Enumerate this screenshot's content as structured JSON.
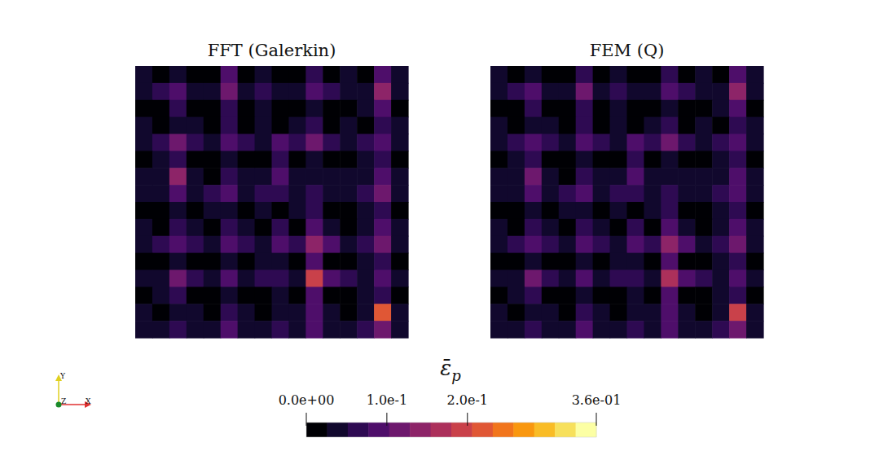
{
  "chart_data": {
    "type": "heatmap",
    "panels": [
      {
        "title": "FFT (Galerkin)",
        "cells": [
          [
            0.03,
            0,
            0.05,
            0,
            0,
            0.08,
            0,
            0.03,
            0,
            0,
            0.06,
            0,
            0.03,
            0,
            0.09,
            0.03
          ],
          [
            0.04,
            0.06,
            0.1,
            0.05,
            0.04,
            0.12,
            0.05,
            0.06,
            0.04,
            0.05,
            0.1,
            0.06,
            0.04,
            0.05,
            0.14,
            0.05
          ],
          [
            0,
            0,
            0.06,
            0,
            0,
            0.07,
            0,
            0.03,
            0,
            0,
            0.05,
            0,
            0,
            0.03,
            0.08,
            0
          ],
          [
            0.03,
            0,
            0.05,
            0.03,
            0,
            0.06,
            0,
            0.04,
            0,
            0.03,
            0.07,
            0,
            0.03,
            0,
            0.06,
            0.03
          ],
          [
            0.05,
            0.07,
            0.11,
            0.06,
            0.05,
            0.1,
            0.06,
            0.05,
            0.08,
            0.06,
            0.12,
            0.07,
            0.05,
            0.06,
            0.1,
            0.05
          ],
          [
            0,
            0.03,
            0.07,
            0,
            0,
            0.05,
            0,
            0,
            0.06,
            0,
            0.04,
            0,
            0,
            0.03,
            0.07,
            0
          ],
          [
            0.03,
            0.04,
            0.13,
            0.03,
            0,
            0.06,
            0.03,
            0.04,
            0.09,
            0.03,
            0.05,
            0.04,
            0.03,
            0.04,
            0.08,
            0.03
          ],
          [
            0.04,
            0.05,
            0.09,
            0.05,
            0.06,
            0.08,
            0.05,
            0.07,
            0.06,
            0.05,
            0.06,
            0.05,
            0.04,
            0.06,
            0.11,
            0.04
          ],
          [
            0,
            0,
            0.04,
            0,
            0.03,
            0.05,
            0,
            0.03,
            0,
            0.03,
            0.07,
            0,
            0,
            0.03,
            0.06,
            0
          ],
          [
            0.03,
            0,
            0.06,
            0.03,
            0,
            0.07,
            0.03,
            0,
            0.06,
            0,
            0.08,
            0.03,
            0,
            0.04,
            0.09,
            0.03
          ],
          [
            0.05,
            0.06,
            0.08,
            0.06,
            0.05,
            0.09,
            0.07,
            0.05,
            0.1,
            0.06,
            0.15,
            0.08,
            0.05,
            0.07,
            0.12,
            0.05
          ],
          [
            0,
            0,
            0.05,
            0,
            0,
            0.04,
            0,
            0.03,
            0.05,
            0,
            0.1,
            0,
            0,
            0.04,
            0.06,
            0
          ],
          [
            0.04,
            0.05,
            0.12,
            0.06,
            0.05,
            0.08,
            0.04,
            0.06,
            0.07,
            0.05,
            0.18,
            0.09,
            0.06,
            0.05,
            0.09,
            0.04
          ],
          [
            0,
            0.03,
            0.06,
            0,
            0,
            0.05,
            0,
            0,
            0.05,
            0,
            0.08,
            0,
            0,
            0.03,
            0.07,
            0
          ],
          [
            0.03,
            0,
            0.05,
            0.03,
            0,
            0.06,
            0.03,
            0,
            0.04,
            0.03,
            0.09,
            0.03,
            0,
            0.04,
            0.22,
            0.03
          ],
          [
            0.04,
            0.05,
            0.07,
            0.05,
            0.04,
            0.08,
            0.05,
            0.04,
            0.06,
            0.05,
            0.1,
            0.05,
            0.04,
            0.06,
            0.12,
            0.04
          ]
        ]
      },
      {
        "title": "FEM (Q)",
        "cells": [
          [
            0.03,
            0,
            0.05,
            0,
            0,
            0.07,
            0,
            0.03,
            0,
            0,
            0.06,
            0,
            0.03,
            0,
            0.08,
            0.03
          ],
          [
            0.04,
            0.06,
            0.1,
            0.05,
            0.04,
            0.11,
            0.05,
            0.06,
            0.04,
            0.05,
            0.1,
            0.06,
            0.04,
            0.05,
            0.13,
            0.05
          ],
          [
            0,
            0,
            0.06,
            0,
            0,
            0.07,
            0,
            0.03,
            0,
            0,
            0.05,
            0,
            0,
            0.03,
            0.08,
            0
          ],
          [
            0.03,
            0,
            0.05,
            0.03,
            0,
            0.06,
            0,
            0.04,
            0,
            0.03,
            0.07,
            0,
            0.03,
            0,
            0.06,
            0.03
          ],
          [
            0.05,
            0.07,
            0.1,
            0.06,
            0.05,
            0.1,
            0.06,
            0.05,
            0.08,
            0.06,
            0.11,
            0.07,
            0.05,
            0.06,
            0.1,
            0.05
          ],
          [
            0,
            0.03,
            0.07,
            0,
            0,
            0.05,
            0,
            0,
            0.06,
            0,
            0.04,
            0,
            0,
            0.03,
            0.07,
            0
          ],
          [
            0.03,
            0.04,
            0.12,
            0.03,
            0,
            0.06,
            0.03,
            0.04,
            0.09,
            0.03,
            0.05,
            0.04,
            0.03,
            0.04,
            0.08,
            0.03
          ],
          [
            0.04,
            0.05,
            0.09,
            0.05,
            0.06,
            0.08,
            0.05,
            0.07,
            0.06,
            0.05,
            0.06,
            0.05,
            0.04,
            0.06,
            0.1,
            0.04
          ],
          [
            0,
            0,
            0.04,
            0,
            0.03,
            0.05,
            0,
            0.03,
            0,
            0.03,
            0.07,
            0,
            0,
            0.03,
            0.06,
            0
          ],
          [
            0.03,
            0,
            0.06,
            0.03,
            0,
            0.07,
            0.03,
            0,
            0.06,
            0,
            0.08,
            0.03,
            0,
            0.04,
            0.09,
            0.03
          ],
          [
            0.05,
            0.06,
            0.08,
            0.06,
            0.05,
            0.09,
            0.07,
            0.05,
            0.1,
            0.06,
            0.14,
            0.08,
            0.05,
            0.07,
            0.12,
            0.05
          ],
          [
            0,
            0,
            0.05,
            0,
            0,
            0.04,
            0,
            0.03,
            0.05,
            0,
            0.1,
            0,
            0,
            0.04,
            0.06,
            0
          ],
          [
            0.04,
            0.05,
            0.11,
            0.06,
            0.05,
            0.08,
            0.04,
            0.06,
            0.07,
            0.05,
            0.17,
            0.09,
            0.06,
            0.05,
            0.09,
            0.04
          ],
          [
            0,
            0.03,
            0.06,
            0,
            0,
            0.05,
            0,
            0,
            0.05,
            0,
            0.08,
            0,
            0,
            0.03,
            0.07,
            0
          ],
          [
            0.03,
            0,
            0.05,
            0.03,
            0,
            0.06,
            0.03,
            0,
            0.04,
            0.03,
            0.09,
            0.03,
            0,
            0.04,
            0.2,
            0.03
          ],
          [
            0.04,
            0.05,
            0.07,
            0.05,
            0.04,
            0.08,
            0.05,
            0.04,
            0.06,
            0.05,
            0.1,
            0.05,
            0.04,
            0.06,
            0.12,
            0.04
          ]
        ]
      }
    ],
    "color_label": [
      "ε̄",
      "p"
    ],
    "color_range": [
      0,
      0.36
    ],
    "color_ticks": [
      {
        "value": 0,
        "label": "0.0e+00"
      },
      {
        "value": 0.1,
        "label": "1.0e-1"
      },
      {
        "value": 0.2,
        "label": "2.0e-1"
      },
      {
        "value": 0.36,
        "label": "3.6e-01"
      }
    ],
    "triad": {
      "x": "X",
      "y": "Y",
      "z": "Z"
    }
  }
}
